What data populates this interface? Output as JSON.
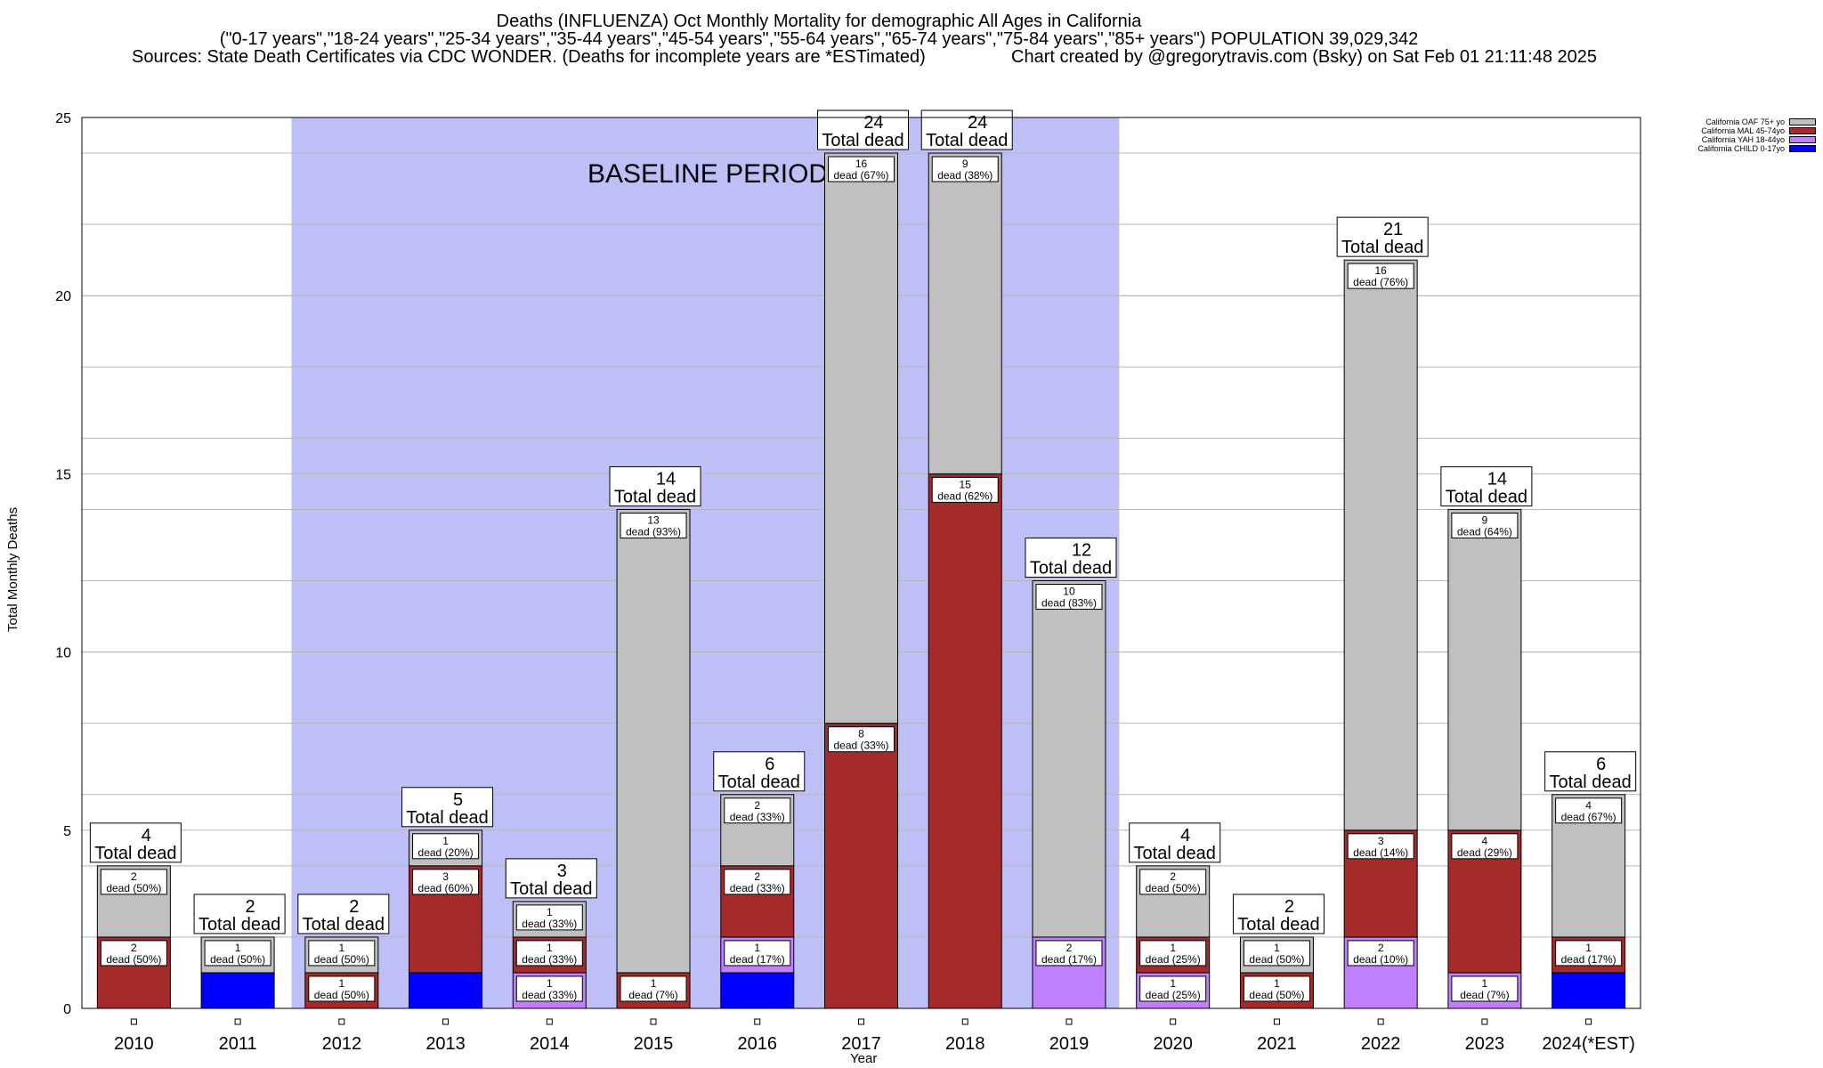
{
  "titles": {
    "line1": "Deaths (INFLUENZA) Oct Monthly Mortality for demographic All Ages in California",
    "line2": "(\"0-17 years\",\"18-24 years\",\"25-34 years\",\"35-44 years\",\"45-54 years\",\"55-64 years\",\"65-74 years\",\"75-84 years\",\"85+ years\") POPULATION 39,029,342",
    "sources": "Sources: State Death Certificates via CDC WONDER. (Deaths for incomplete years are *ESTimated)",
    "credit": "Chart created by @gregorytravis.com (Bsky) on Sat Feb 01 21:11:48 2025"
  },
  "chart_data": {
    "type": "bar",
    "stacked": true,
    "xlabel": "Year",
    "ylabel": "Total Monthly Deaths",
    "ylim": [
      0,
      25
    ],
    "yticks": [
      0,
      5,
      10,
      15,
      20,
      25
    ],
    "grid": true,
    "legend_position": "top-right, outside plot",
    "baseline_period": {
      "label": "BASELINE PERIOD",
      "from": "2012",
      "to": "2019",
      "color": "#bfbff8"
    },
    "total_label_suffix": "Total dead",
    "categories": [
      "2010",
      "2011",
      "2012",
      "2013",
      "2014",
      "2015",
      "2016",
      "2017",
      "2018",
      "2019",
      "2020",
      "2021",
      "2022",
      "2023",
      "2024(*EST)"
    ],
    "series": [
      {
        "name": "California CHILD 0-17yo",
        "color": "#0000ff",
        "values": [
          0,
          1,
          0,
          1,
          0,
          0,
          1,
          0,
          0,
          0,
          0,
          0,
          0,
          0,
          1
        ]
      },
      {
        "name": "California YAH 18-44yo",
        "color": "#bf7fff",
        "values": [
          0,
          0,
          0,
          0,
          1,
          0,
          1,
          0,
          0,
          2,
          1,
          0,
          2,
          1,
          0
        ]
      },
      {
        "name": "California MAL 45-74yo",
        "color": "#a52a2a",
        "values": [
          2,
          0,
          1,
          3,
          1,
          1,
          2,
          8,
          15,
          0,
          1,
          1,
          3,
          4,
          1
        ]
      },
      {
        "name": "California OAF 75+ yo",
        "color": "#c0c0c0",
        "values": [
          2,
          1,
          1,
          1,
          1,
          13,
          2,
          16,
          9,
          10,
          2,
          1,
          16,
          9,
          4
        ]
      }
    ],
    "totals": [
      4,
      2,
      2,
      5,
      3,
      14,
      6,
      24,
      24,
      12,
      4,
      2,
      21,
      14,
      6
    ],
    "segment_labels": [
      [
        {
          "series": 2,
          "text": [
            "2",
            "dead (50%)"
          ]
        },
        {
          "series": 3,
          "text": [
            "2",
            "dead (50%)"
          ]
        }
      ],
      [
        {
          "series": 3,
          "text": [
            "1",
            "dead (50%)"
          ]
        }
      ],
      [
        {
          "series": 2,
          "text": [
            "1",
            "dead (50%)"
          ]
        },
        {
          "series": 3,
          "text": [
            "1",
            "dead (50%)"
          ]
        }
      ],
      [
        {
          "series": 2,
          "text": [
            "3",
            "dead (60%)"
          ]
        },
        {
          "series": 3,
          "text": [
            "1",
            "dead (20%)"
          ]
        }
      ],
      [
        {
          "series": 1,
          "text": [
            "1",
            "dead (33%)"
          ]
        },
        {
          "series": 2,
          "text": [
            "1",
            "dead (33%)"
          ]
        },
        {
          "series": 3,
          "text": [
            "1",
            "dead (33%)"
          ]
        }
      ],
      [
        {
          "series": 2,
          "text": [
            "1",
            "dead (7%)"
          ]
        },
        {
          "series": 3,
          "text": [
            "13",
            "dead (93%)"
          ]
        }
      ],
      [
        {
          "series": 1,
          "text": [
            "1",
            "dead (17%)"
          ]
        },
        {
          "series": 2,
          "text": [
            "2",
            "dead (33%)"
          ]
        },
        {
          "series": 3,
          "text": [
            "2",
            "dead (33%)"
          ]
        }
      ],
      [
        {
          "series": 2,
          "text": [
            "8",
            "dead (33%)"
          ]
        },
        {
          "series": 3,
          "text": [
            "16",
            "dead (67%)"
          ]
        }
      ],
      [
        {
          "series": 2,
          "text": [
            "15",
            "dead (62%)"
          ]
        },
        {
          "series": 3,
          "text": [
            "9",
            "dead (38%)"
          ]
        }
      ],
      [
        {
          "series": 1,
          "text": [
            "2",
            "dead (17%)"
          ]
        },
        {
          "series": 3,
          "text": [
            "10",
            "dead (83%)"
          ]
        }
      ],
      [
        {
          "series": 1,
          "text": [
            "1",
            "dead (25%)"
          ]
        },
        {
          "series": 2,
          "text": [
            "1",
            "dead (25%)"
          ]
        },
        {
          "series": 3,
          "text": [
            "2",
            "dead (50%)"
          ]
        }
      ],
      [
        {
          "series": 2,
          "text": [
            "1",
            "dead (50%)"
          ]
        },
        {
          "series": 3,
          "text": [
            "1",
            "dead (50%)"
          ]
        }
      ],
      [
        {
          "series": 1,
          "text": [
            "2",
            "dead (10%)"
          ]
        },
        {
          "series": 2,
          "text": [
            "3",
            "dead (14%)"
          ]
        },
        {
          "series": 3,
          "text": [
            "16",
            "dead (76%)"
          ]
        }
      ],
      [
        {
          "series": 1,
          "text": [
            "1",
            "dead (7%)"
          ]
        },
        {
          "series": 2,
          "text": [
            "4",
            "dead (29%)"
          ]
        },
        {
          "series": 3,
          "text": [
            "9",
            "dead (64%)"
          ]
        }
      ],
      [
        {
          "series": 2,
          "text": [
            "1",
            "dead (17%)"
          ]
        },
        {
          "series": 3,
          "text": [
            "4",
            "dead (67%)"
          ]
        }
      ]
    ]
  }
}
